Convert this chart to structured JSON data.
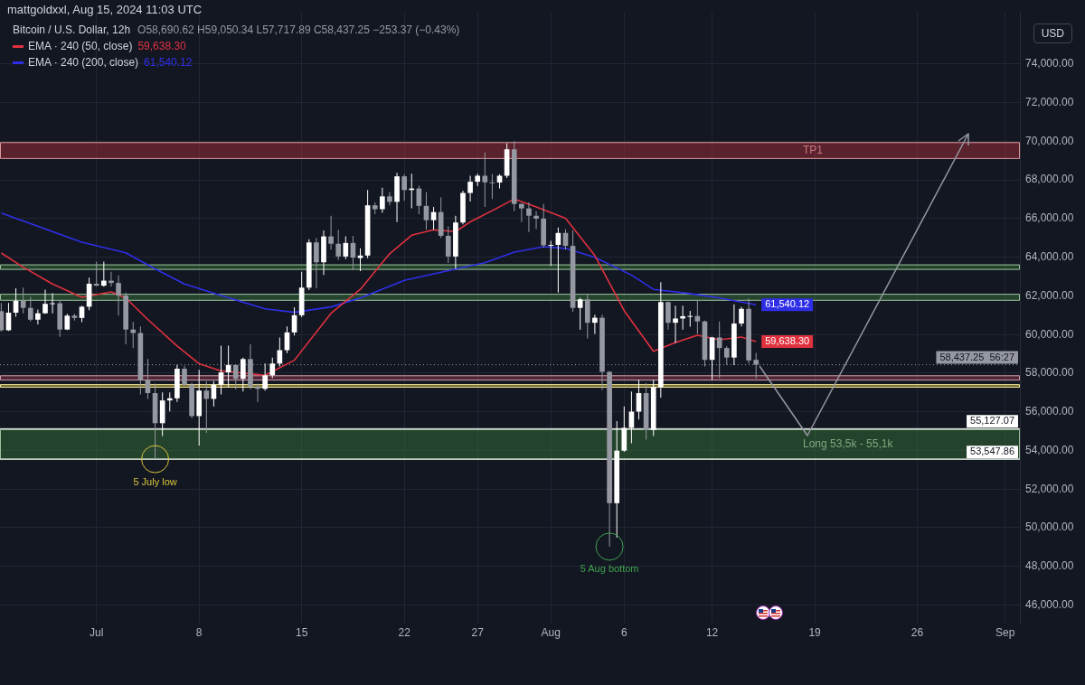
{
  "chart_data": {
    "type": "candlestick",
    "title": "mattgoldxxl, Aug 15, 2024 11:03 UTC",
    "subtitle": "Bitcoin / U.S. Dollar, 12h",
    "ylabel": "USD",
    "x": [
      "2024-06-24T12:00",
      "2024-06-25T00:00",
      "2024-06-25T12:00",
      "2024-06-26T00:00",
      "2024-06-26T12:00",
      "2024-06-27T00:00",
      "2024-06-27T12:00",
      "2024-06-28T00:00",
      "2024-06-28T12:00",
      "2024-06-29T00:00",
      "2024-06-29T12:00",
      "2024-06-30T00:00",
      "2024-06-30T12:00",
      "2024-07-01T00:00",
      "2024-07-01T12:00",
      "2024-07-02T00:00",
      "2024-07-02T12:00",
      "2024-07-03T00:00",
      "2024-07-03T12:00",
      "2024-07-04T00:00",
      "2024-07-04T12:00",
      "2024-07-05T00:00",
      "2024-07-05T12:00",
      "2024-07-06T00:00",
      "2024-07-06T12:00",
      "2024-07-07T00:00",
      "2024-07-07T12:00",
      "2024-07-08T00:00",
      "2024-07-08T12:00",
      "2024-07-09T00:00",
      "2024-07-09T12:00",
      "2024-07-10T00:00",
      "2024-07-10T12:00",
      "2024-07-11T00:00",
      "2024-07-11T12:00",
      "2024-07-12T00:00",
      "2024-07-12T12:00",
      "2024-07-13T00:00",
      "2024-07-13T12:00",
      "2024-07-14T00:00",
      "2024-07-14T12:00",
      "2024-07-15T00:00",
      "2024-07-15T12:00",
      "2024-07-16T00:00",
      "2024-07-16T12:00",
      "2024-07-17T00:00",
      "2024-07-17T12:00",
      "2024-07-18T00:00",
      "2024-07-18T12:00",
      "2024-07-19T00:00",
      "2024-07-19T12:00",
      "2024-07-20T00:00",
      "2024-07-20T12:00",
      "2024-07-21T00:00",
      "2024-07-21T12:00",
      "2024-07-22T00:00",
      "2024-07-22T12:00",
      "2024-07-23T00:00",
      "2024-07-23T12:00",
      "2024-07-24T00:00",
      "2024-07-24T12:00",
      "2024-07-25T00:00",
      "2024-07-25T12:00",
      "2024-07-26T00:00",
      "2024-07-26T12:00",
      "2024-07-27T00:00",
      "2024-07-27T12:00",
      "2024-07-28T00:00",
      "2024-07-28T12:00",
      "2024-07-29T00:00",
      "2024-07-29T12:00",
      "2024-07-30T00:00",
      "2024-07-30T12:00",
      "2024-07-31T00:00",
      "2024-07-31T12:00",
      "2024-08-01T00:00",
      "2024-08-01T12:00",
      "2024-08-02T00:00",
      "2024-08-02T12:00",
      "2024-08-03T00:00",
      "2024-08-03T12:00",
      "2024-08-04T00:00",
      "2024-08-04T12:00",
      "2024-08-05T00:00",
      "2024-08-05T12:00",
      "2024-08-06T00:00",
      "2024-08-06T12:00",
      "2024-08-07T00:00",
      "2024-08-07T12:00",
      "2024-08-08T00:00",
      "2024-08-08T12:00",
      "2024-08-09T00:00",
      "2024-08-09T12:00",
      "2024-08-10T00:00",
      "2024-08-10T12:00",
      "2024-08-11T00:00",
      "2024-08-11T12:00",
      "2024-08-12T00:00",
      "2024-08-12T12:00",
      "2024-08-13T00:00",
      "2024-08-13T12:00",
      "2024-08-14T00:00",
      "2024-08-14T12:00",
      "2024-08-15T00:00"
    ],
    "ohlc": [
      [
        61210,
        61640,
        60150,
        60220
      ],
      [
        60220,
        61640,
        60190,
        61130
      ],
      [
        61130,
        62400,
        60920,
        61750
      ],
      [
        61750,
        62430,
        61100,
        61380
      ],
      [
        61380,
        61950,
        60680,
        60770
      ],
      [
        60770,
        61290,
        60520,
        61100
      ],
      [
        61100,
        62330,
        61070,
        61590
      ],
      [
        61590,
        62140,
        61100,
        61620
      ],
      [
        61620,
        61750,
        59880,
        60260
      ],
      [
        60260,
        61070,
        60230,
        60980
      ],
      [
        60980,
        61070,
        60720,
        60860
      ],
      [
        60860,
        61500,
        60640,
        61440
      ],
      [
        61440,
        62940,
        61260,
        62630
      ],
      [
        62630,
        63780,
        62510,
        62530
      ],
      [
        62530,
        63780,
        62480,
        62790
      ],
      [
        62790,
        63250,
        62480,
        62670
      ],
      [
        62670,
        63060,
        60980,
        62020
      ],
      [
        62020,
        62170,
        59500,
        60260
      ],
      [
        60260,
        60650,
        59300,
        60080
      ],
      [
        60080,
        60420,
        56900,
        57660
      ],
      [
        57660,
        58730,
        56670,
        56970
      ],
      [
        56970,
        57460,
        53550,
        55410
      ],
      [
        55410,
        57000,
        54750,
        56590
      ],
      [
        56590,
        57000,
        56020,
        56700
      ],
      [
        56700,
        58430,
        56510,
        58230
      ],
      [
        58230,
        58380,
        57350,
        57400
      ],
      [
        57400,
        57510,
        55670,
        55780
      ],
      [
        55780,
        58170,
        54250,
        57100
      ],
      [
        57100,
        57590,
        54910,
        56670
      ],
      [
        56670,
        57590,
        56280,
        57400
      ],
      [
        57400,
        59420,
        56900,
        58040
      ],
      [
        58040,
        59420,
        57280,
        58430
      ],
      [
        58430,
        58430,
        57160,
        57710
      ],
      [
        57710,
        58800,
        57050,
        58730
      ],
      [
        58730,
        59500,
        57160,
        57310
      ],
      [
        57310,
        57460,
        56510,
        57190
      ],
      [
        57190,
        58500,
        57100,
        57890
      ],
      [
        57890,
        58810,
        57740,
        58500
      ],
      [
        58500,
        59850,
        58350,
        59190
      ],
      [
        59190,
        60420,
        59040,
        60110
      ],
      [
        60110,
        61410,
        59950,
        61000
      ],
      [
        61000,
        63250,
        60900,
        62430
      ],
      [
        62430,
        64930,
        62300,
        64770
      ],
      [
        64770,
        65000,
        62400,
        63740
      ],
      [
        63740,
        65390,
        63090,
        65080
      ],
      [
        65080,
        66150,
        64400,
        64700
      ],
      [
        64700,
        65420,
        63860,
        64040
      ],
      [
        64040,
        65080,
        63900,
        64740
      ],
      [
        64740,
        65110,
        63350,
        63980
      ],
      [
        63960,
        64470,
        63280,
        64090
      ],
      [
        64090,
        67480,
        63950,
        66690
      ],
      [
        66690,
        66840,
        66230,
        66490
      ],
      [
        66490,
        67600,
        66300,
        67150
      ],
      [
        67150,
        67380,
        66690,
        66870
      ],
      [
        66870,
        68370,
        65820,
        68190
      ],
      [
        68190,
        68300,
        66920,
        67480
      ],
      [
        67480,
        68330,
        66530,
        67560
      ],
      [
        67560,
        67700,
        66230,
        66660
      ],
      [
        66660,
        67380,
        65420,
        65920
      ],
      [
        65920,
        66610,
        65420,
        66340
      ],
      [
        66340,
        67100,
        65000,
        65110
      ],
      [
        65110,
        65600,
        63700,
        64040
      ],
      [
        64040,
        66150,
        63400,
        65800
      ],
      [
        65800,
        67450,
        65700,
        67330
      ],
      [
        67330,
        68220,
        66890,
        67910
      ],
      [
        67910,
        68320,
        67680,
        68220
      ],
      [
        68220,
        69440,
        66610,
        67880
      ],
      [
        67880,
        68300,
        67020,
        67870
      ],
      [
        67870,
        68300,
        67560,
        68220
      ],
      [
        68220,
        69900,
        68100,
        69590
      ],
      [
        69590,
        70010,
        66380,
        66760
      ],
      [
        66760,
        66800,
        65820,
        66530
      ],
      [
        66530,
        66840,
        65310,
        66150
      ],
      [
        66150,
        66380,
        65460,
        66000
      ],
      [
        66000,
        66760,
        64500,
        64620
      ],
      [
        64620,
        64850,
        63550,
        64640
      ],
      [
        64640,
        65540,
        62170,
        65260
      ],
      [
        65260,
        65460,
        64400,
        64590
      ],
      [
        64590,
        65390,
        61180,
        61380
      ],
      [
        61380,
        61900,
        60260,
        61820
      ],
      [
        61820,
        62100,
        59800,
        60610
      ],
      [
        60610,
        61030,
        60030,
        60870
      ],
      [
        60870,
        61030,
        57130,
        58070
      ],
      [
        58070,
        58120,
        49020,
        51270
      ],
      [
        51270,
        55520,
        49480,
        53990
      ],
      [
        53990,
        56280,
        53930,
        55170
      ],
      [
        55170,
        57050,
        54370,
        56010
      ],
      [
        56010,
        57660,
        55600,
        56970
      ],
      [
        56970,
        57500,
        54560,
        55060
      ],
      [
        55060,
        57660,
        54750,
        57280
      ],
      [
        57280,
        62710,
        56740,
        61680
      ],
      [
        61680,
        61700,
        60260,
        60610
      ],
      [
        60610,
        61490,
        59570,
        60830
      ],
      [
        60830,
        61490,
        60260,
        60950
      ],
      [
        60950,
        61230,
        60410,
        60960
      ],
      [
        60960,
        61790,
        60030,
        60680
      ],
      [
        60680,
        60720,
        58350,
        58690
      ],
      [
        58690,
        59880,
        57660,
        59850
      ],
      [
        59850,
        60680,
        57740,
        59300
      ],
      [
        59300,
        59400,
        58430,
        58810
      ],
      [
        58810,
        61560,
        58420,
        60570
      ],
      [
        60570,
        61440,
        60420,
        61330
      ],
      [
        61330,
        61870,
        58500,
        58660
      ],
      [
        58690.62,
        59050.34,
        57717.89,
        58437.25
      ]
    ],
    "colors": [
      "#9598a1",
      "#ffffff",
      "#ffffff",
      "#9598a1",
      "#9598a1",
      "#ffffff",
      "#ffffff",
      "#ffffff",
      "#9598a1",
      "#ffffff",
      "#9598a1",
      "#ffffff",
      "#ffffff",
      "#9598a1",
      "#ffffff",
      "#9598a1",
      "#9598a1",
      "#9598a1",
      "#9598a1",
      "#9598a1",
      "#9598a1",
      "#9598a1",
      "#ffffff",
      "#ffffff",
      "#ffffff",
      "#9598a1",
      "#9598a1",
      "#ffffff",
      "#9598a1",
      "#ffffff",
      "#ffffff",
      "#ffffff",
      "#9598a1",
      "#ffffff",
      "#9598a1",
      "#9598a1",
      "#ffffff",
      "#ffffff",
      "#ffffff",
      "#ffffff",
      "#ffffff",
      "#ffffff",
      "#ffffff",
      "#9598a1",
      "#ffffff",
      "#9598a1",
      "#9598a1",
      "#ffffff",
      "#9598a1",
      "#ffffff",
      "#ffffff",
      "#9598a1",
      "#ffffff",
      "#9598a1",
      "#ffffff",
      "#9598a1",
      "#ffffff",
      "#9598a1",
      "#9598a1",
      "#ffffff",
      "#9598a1",
      "#9598a1",
      "#ffffff",
      "#ffffff",
      "#ffffff",
      "#ffffff",
      "#9598a1",
      "#9598a1",
      "#ffffff",
      "#ffffff",
      "#9598a1",
      "#9598a1",
      "#9598a1",
      "#9598a1",
      "#9598a1",
      "#ffffff",
      "#ffffff",
      "#9598a1",
      "#9598a1",
      "#ffffff",
      "#9598a1",
      "#ffffff",
      "#9598a1",
      "#9598a1",
      "#ffffff",
      "#ffffff",
      "#ffffff",
      "#ffffff",
      "#9598a1",
      "#ffffff",
      "#ffffff",
      "#9598a1",
      "#ffffff",
      "#ffffff",
      "#ffffff",
      "#9598a1",
      "#9598a1",
      "#ffffff",
      "#9598a1",
      "#9598a1",
      "#ffffff",
      "#ffffff",
      "#9598a1",
      "#9598a1"
    ],
    "series": [
      {
        "name": "EMA · 240 (50, close)",
        "type": "line",
        "color": "#e0313f",
        "x": [
          "2024-06-24T12:00",
          "2024-06-26T00:00",
          "2024-06-28T00:00",
          "2024-06-30T00:00",
          "2024-07-02T00:00",
          "2024-07-03T00:00",
          "2024-07-04T12:00",
          "2024-07-06T12:00",
          "2024-07-08T00:00",
          "2024-07-09T12:00",
          "2024-07-12T12:00",
          "2024-07-14T12:00",
          "2024-07-17T00:00",
          "2024-07-19T00:00",
          "2024-07-21T00:00",
          "2024-07-22T12:00",
          "2024-07-24T00:00",
          "2024-07-25T12:00",
          "2024-07-26T12:00",
          "2024-07-28T12:00",
          "2024-07-29T12:00",
          "2024-07-31T00:00",
          "2024-08-02T00:00",
          "2024-08-04T00:00",
          "2024-08-06T00:00",
          "2024-08-08T00:00",
          "2024-08-09T12:00",
          "2024-08-11T00:00",
          "2024-08-12T12:00",
          "2024-08-14T00:00",
          "2024-08-15T00:00"
        ],
        "values": [
          64220,
          63490,
          62620,
          61930,
          62210,
          61890,
          60780,
          59410,
          58490,
          58120,
          57890,
          58670,
          61100,
          62340,
          64180,
          65140,
          65420,
          65330,
          65830,
          66610,
          67020,
          66610,
          66020,
          64090,
          61240,
          59130,
          59590,
          59960,
          59730,
          59870,
          59638.3
        ],
        "value_labels": [
          null,
          null,
          null,
          null,
          null,
          null,
          null,
          null,
          null,
          null,
          null,
          null,
          null,
          null,
          null,
          null,
          null,
          null,
          null,
          null,
          null,
          null,
          null,
          null,
          null,
          null,
          null,
          null,
          null,
          null,
          "59,638.30"
        ]
      },
      {
        "name": "EMA · 240 (200, close)",
        "type": "line",
        "color": "#2f2fe8",
        "x": [
          "2024-06-24T12:00",
          "2024-06-30T00:00",
          "2024-07-03T00:00",
          "2024-07-05T00:00",
          "2024-07-07T00:00",
          "2024-07-09T12:00",
          "2024-07-12T12:00",
          "2024-07-14T12:00",
          "2024-07-17T00:00",
          "2024-07-19T00:00",
          "2024-07-22T00:00",
          "2024-07-25T00:00",
          "2024-07-27T12:00",
          "2024-07-29T12:00",
          "2024-07-31T12:00",
          "2024-08-02T00:00",
          "2024-08-04T00:00",
          "2024-08-06T12:00",
          "2024-08-08T00:00",
          "2024-08-10T12:00",
          "2024-08-12T12:00",
          "2024-08-15T00:00"
        ],
        "values": [
          66290,
          64780,
          64230,
          63400,
          62620,
          62020,
          61330,
          61150,
          61430,
          61890,
          62800,
          63310,
          63720,
          64270,
          64550,
          64460,
          64000,
          63080,
          62340,
          62120,
          61890,
          61540.12
        ],
        "value_labels": [
          null,
          null,
          null,
          null,
          null,
          null,
          null,
          null,
          null,
          null,
          null,
          null,
          null,
          null,
          null,
          null,
          null,
          null,
          null,
          null,
          null,
          "61,540.12"
        ]
      }
    ],
    "xlim": [
      "2024-06-24T10:00",
      "2024-09-02T00:00"
    ],
    "xticks": [
      {
        "value": "2024-07-01",
        "label": "Jul"
      },
      {
        "value": "2024-07-08",
        "label": "8"
      },
      {
        "value": "2024-07-15",
        "label": "15"
      },
      {
        "value": "2024-07-22",
        "label": "22"
      },
      {
        "value": "2024-07-27",
        "label": "27"
      },
      {
        "value": "2024-08-01",
        "label": "Aug"
      },
      {
        "value": "2024-08-06",
        "label": "6"
      },
      {
        "value": "2024-08-12",
        "label": "12"
      },
      {
        "value": "2024-08-19",
        "label": "19"
      },
      {
        "value": "2024-08-26",
        "label": "26"
      },
      {
        "value": "2024-09-01",
        "label": "Sep"
      }
    ],
    "ylim": [
      45040,
      76700
    ],
    "yticks": [
      {
        "value": 46000,
        "label": "46,000.00"
      },
      {
        "value": 48000,
        "label": "48,000.00"
      },
      {
        "value": 50000,
        "label": "50,000.00"
      },
      {
        "value": 52000,
        "label": "52,000.00"
      },
      {
        "value": 54000,
        "label": "54,000.00"
      },
      {
        "value": 56000,
        "label": "56,000.00"
      },
      {
        "value": 58000,
        "label": "58,000.00"
      },
      {
        "value": 60000,
        "label": "60,000.00"
      },
      {
        "value": 62000,
        "label": "62,000.00"
      },
      {
        "value": 64000,
        "label": "64,000.00"
      },
      {
        "value": 66000,
        "label": "66,000.00"
      },
      {
        "value": 68000,
        "label": "68,000.00"
      },
      {
        "value": 70000,
        "label": "70,000.00"
      },
      {
        "value": 72000,
        "label": "72,000.00"
      },
      {
        "value": 74000,
        "label": "74,000.00"
      }
    ],
    "grid": true,
    "legend": "top left",
    "ref_lines": [
      {
        "axis": "y",
        "value": 55127.07,
        "label": "55,127.07",
        "color": "#ffffff"
      },
      {
        "axis": "y",
        "value": 53547.86,
        "label": "53,547.86",
        "color": "#ffffff"
      },
      {
        "axis": "y",
        "value": 58437.25,
        "label": "58,437.25",
        "color": "#9598a1",
        "line_style": "dotted"
      }
    ],
    "bands": [
      {
        "axis": "y",
        "from": 69090,
        "to": 69960,
        "label": "TP1",
        "color": "#b2303c"
      },
      {
        "axis": "y",
        "from": 53530,
        "to": 55100,
        "label": "Long 53,5k - 55,1k",
        "color": "#3a7a3a"
      },
      {
        "axis": "y",
        "from": 61750,
        "to": 62110,
        "color": "#3a7a3a"
      },
      {
        "axis": "y",
        "from": 63350,
        "to": 63630,
        "color": "#3a7a3a"
      },
      {
        "axis": "y",
        "from": 57620,
        "to": 57890,
        "color": "#9a3a50"
      },
      {
        "axis": "y",
        "from": 57250,
        "to": 57430,
        "color": "#e3c93b"
      }
    ],
    "annotations": [
      "O58,690.62 H59,050.34 L57,717.89 C58,437.25 −253.37 (−0.43%)",
      {
        "text": "5 July low",
        "x": "2024-07-05T00:00",
        "y": 53550
      },
      {
        "text": "5 Aug bottom",
        "x": "2024-08-05T00:00",
        "y": 49020
      },
      "56:27"
    ]
  }
}
